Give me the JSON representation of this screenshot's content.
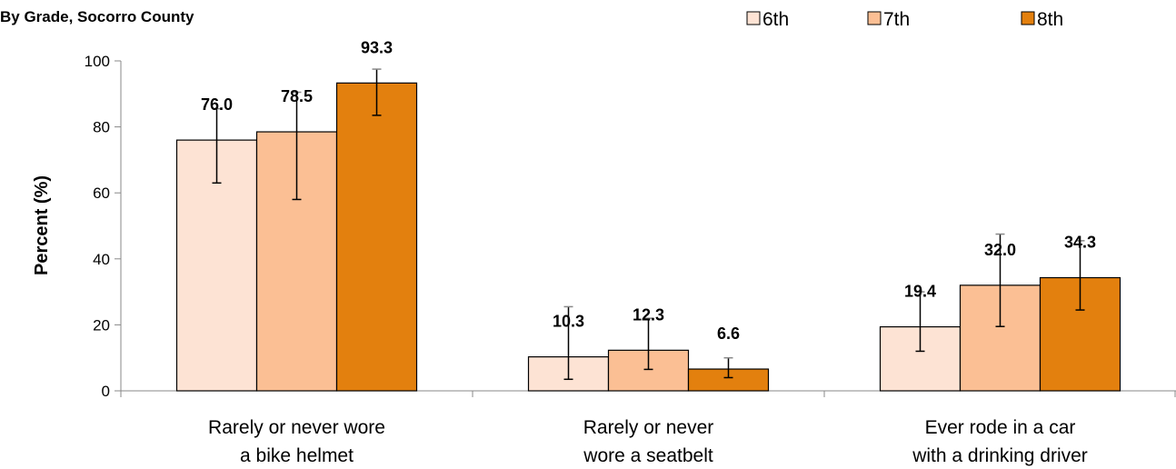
{
  "chart_data": {
    "type": "bar",
    "subtitle": "By Grade, Socorro County",
    "ylabel": "Percent (%)",
    "ylim": [
      0,
      100
    ],
    "yticks": [
      0,
      20,
      40,
      60,
      80,
      100
    ],
    "grid": false,
    "legend_position": "top-right",
    "categories": [
      [
        "Rarely or never wore",
        "a bike helmet"
      ],
      [
        "Rarely or never",
        "wore a seatbelt"
      ],
      [
        "Ever rode in a car",
        "with a drinking driver"
      ]
    ],
    "series": [
      {
        "name": "6th",
        "color": "#fde3d4",
        "values": [
          76.0,
          10.3,
          19.4
        ],
        "labels": [
          "76.0",
          "10.3",
          "19.4"
        ],
        "ci_low": [
          63.0,
          3.5,
          12.0
        ],
        "ci_high": [
          85.5,
          25.5,
          30.0
        ]
      },
      {
        "name": "7th",
        "color": "#fbbf94",
        "values": [
          78.5,
          12.3,
          32.0
        ],
        "labels": [
          "78.5",
          "12.3",
          "32.0"
        ],
        "ci_low": [
          58.0,
          6.5,
          19.5
        ],
        "ci_high": [
          90.5,
          22.0,
          47.5
        ]
      },
      {
        "name": "8th",
        "color": "#e3800e",
        "values": [
          93.3,
          6.6,
          34.3
        ],
        "labels": [
          "93.3",
          "6.6",
          "34.3"
        ],
        "ci_low": [
          83.5,
          4.0,
          24.5
        ],
        "ci_high": [
          97.5,
          10.0,
          45.5
        ]
      }
    ]
  }
}
